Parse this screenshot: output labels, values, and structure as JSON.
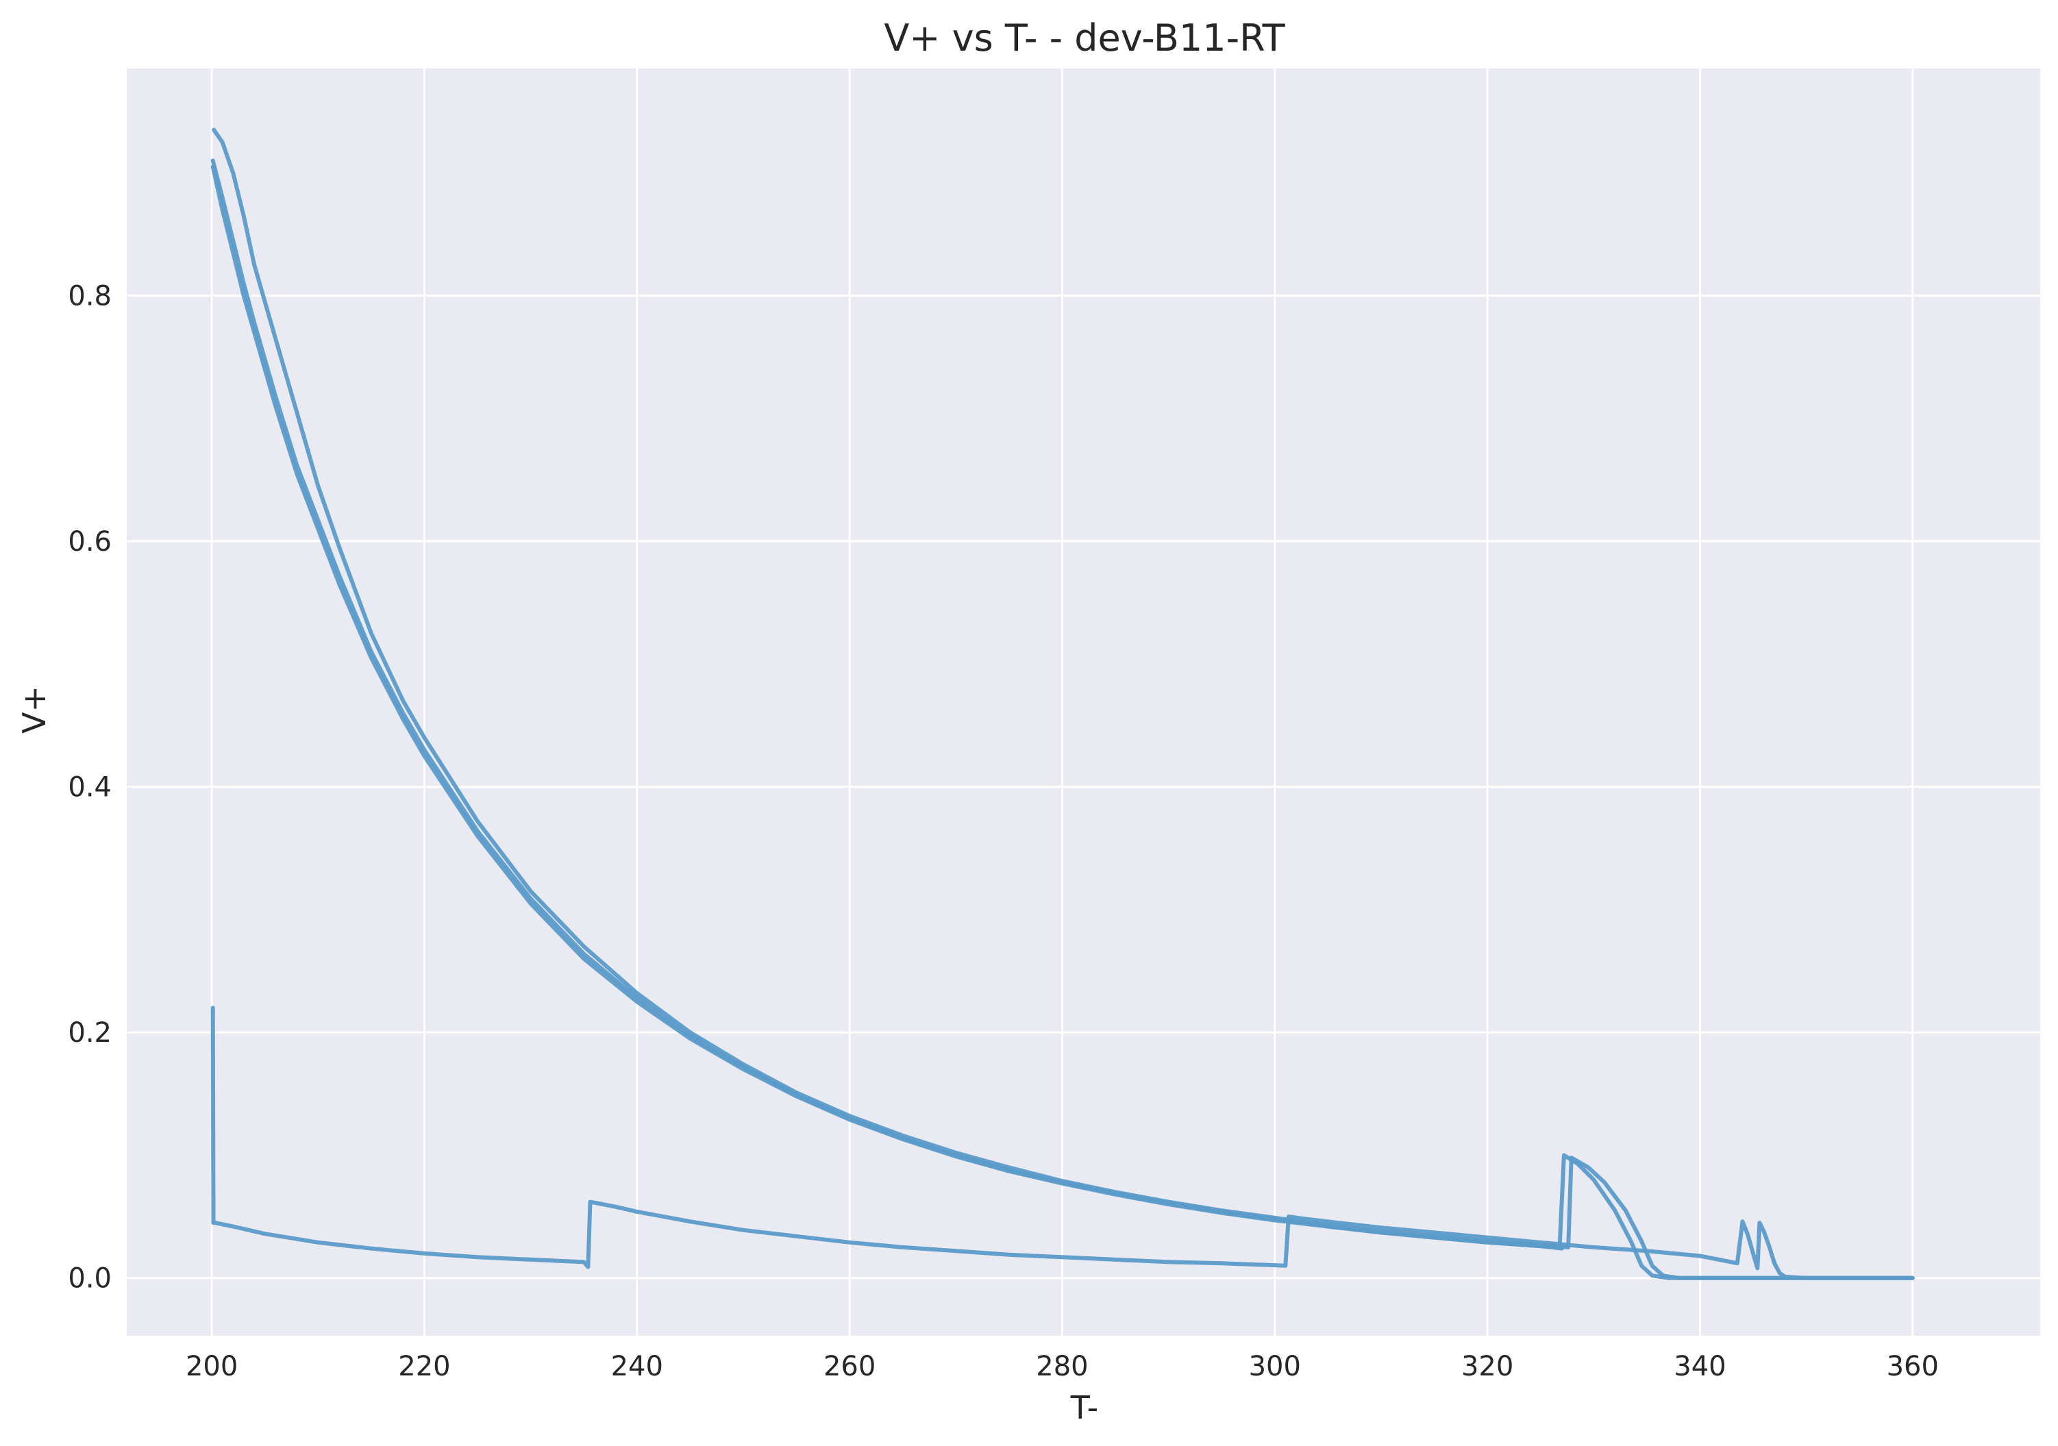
{
  "chart_data": {
    "type": "line",
    "title": "V+ vs T- - dev-B11-RT",
    "xlabel": "T-",
    "ylabel": "V+",
    "xlim": [
      192,
      372
    ],
    "ylim": [
      -0.047,
      0.985
    ],
    "x_ticks": [
      200,
      220,
      240,
      260,
      280,
      300,
      320,
      340,
      360
    ],
    "y_ticks": [
      0.0,
      0.2,
      0.4,
      0.6,
      0.8
    ],
    "x_tick_labels": [
      "200",
      "220",
      "240",
      "260",
      "280",
      "300",
      "320",
      "340",
      "360"
    ],
    "y_tick_labels": [
      "0.0",
      "0.2",
      "0.4",
      "0.6",
      "0.8"
    ],
    "grid": true,
    "legend": "none",
    "colors": {
      "line": "#5b9bc9",
      "plot_bg": "#e9eaf2",
      "grid": "#ffffff",
      "text": "#262626"
    },
    "series": [
      {
        "x": [
          200.1,
          201,
          202,
          203,
          204,
          206,
          208,
          210,
          212,
          215,
          218,
          220,
          225,
          230,
          235,
          240,
          245,
          250,
          255,
          260,
          265,
          270,
          275,
          280,
          285,
          290,
          295,
          300,
          305,
          310,
          315,
          320,
          325,
          327
        ],
        "y": [
          0.905,
          0.87,
          0.835,
          0.8,
          0.77,
          0.71,
          0.655,
          0.61,
          0.565,
          0.505,
          0.455,
          0.425,
          0.36,
          0.305,
          0.26,
          0.225,
          0.195,
          0.17,
          0.148,
          0.129,
          0.113,
          0.099,
          0.087,
          0.077,
          0.068,
          0.06,
          0.053,
          0.047,
          0.042,
          0.037,
          0.033,
          0.029,
          0.026,
          0.024
        ]
      },
      {
        "x": [
          200.2,
          201,
          202,
          203,
          204,
          206,
          208,
          210,
          212,
          215,
          218,
          220,
          225,
          230,
          235,
          240,
          245,
          250,
          255,
          260,
          265,
          270,
          275,
          280,
          285,
          290,
          295,
          300,
          305,
          310,
          315,
          320,
          325,
          326.8,
          327.2,
          328.5,
          330,
          332,
          333.5,
          334.5,
          335.5,
          337,
          340,
          345,
          350,
          355,
          360
        ],
        "y": [
          0.935,
          0.925,
          0.9,
          0.865,
          0.825,
          0.765,
          0.705,
          0.645,
          0.595,
          0.525,
          0.47,
          0.44,
          0.372,
          0.315,
          0.27,
          0.232,
          0.2,
          0.174,
          0.151,
          0.132,
          0.116,
          0.102,
          0.09,
          0.079,
          0.07,
          0.062,
          0.055,
          0.049,
          0.043,
          0.038,
          0.034,
          0.03,
          0.027,
          0.026,
          0.1,
          0.093,
          0.08,
          0.055,
          0.03,
          0.01,
          0.002,
          0.0,
          0.0,
          0.0,
          0.0,
          0.0,
          0.0
        ]
      },
      {
        "x": [
          200.1,
          201,
          202,
          203,
          204,
          206,
          208,
          210,
          212,
          215,
          218,
          220,
          225,
          230,
          235,
          240,
          245,
          250,
          255,
          260,
          265,
          270,
          275,
          280,
          285,
          290,
          295,
          300,
          305,
          310,
          315,
          320,
          325,
          327.6,
          327.9,
          329.5,
          331,
          333,
          334.5,
          335.5,
          336.5,
          338,
          340,
          345,
          350,
          355,
          360
        ],
        "y": [
          0.91,
          0.88,
          0.845,
          0.81,
          0.778,
          0.718,
          0.662,
          0.617,
          0.572,
          0.51,
          0.46,
          0.43,
          0.364,
          0.309,
          0.264,
          0.228,
          0.197,
          0.172,
          0.149,
          0.13,
          0.114,
          0.1,
          0.088,
          0.078,
          0.069,
          0.061,
          0.054,
          0.048,
          0.042,
          0.037,
          0.033,
          0.029,
          0.026,
          0.025,
          0.098,
          0.09,
          0.078,
          0.055,
          0.03,
          0.01,
          0.002,
          0.0,
          0.0,
          0.0,
          0.0,
          0.0,
          0.0
        ]
      },
      {
        "x": [
          200.1,
          200.15,
          200.3,
          202,
          205,
          210,
          215,
          220,
          225,
          230,
          235,
          235.4,
          235.6,
          238,
          240,
          245,
          250,
          255,
          260,
          265,
          270,
          275,
          280,
          285,
          290,
          295,
          301,
          301.3,
          303,
          305,
          310,
          315,
          320,
          325,
          330,
          335,
          340,
          343.5,
          344,
          344.5,
          345,
          345.4,
          345.6,
          346,
          346.5,
          347,
          347.5,
          348,
          350,
          355,
          360
        ],
        "y": [
          0.22,
          0.045,
          0.045,
          0.042,
          0.036,
          0.029,
          0.024,
          0.02,
          0.017,
          0.015,
          0.013,
          0.009,
          0.062,
          0.058,
          0.054,
          0.046,
          0.039,
          0.034,
          0.029,
          0.025,
          0.022,
          0.019,
          0.017,
          0.015,
          0.013,
          0.012,
          0.01,
          0.05,
          0.048,
          0.046,
          0.041,
          0.037,
          0.033,
          0.029,
          0.025,
          0.022,
          0.018,
          0.012,
          0.046,
          0.035,
          0.02,
          0.008,
          0.045,
          0.038,
          0.026,
          0.012,
          0.004,
          0.001,
          0.0,
          0.0,
          0.0
        ]
      }
    ]
  }
}
